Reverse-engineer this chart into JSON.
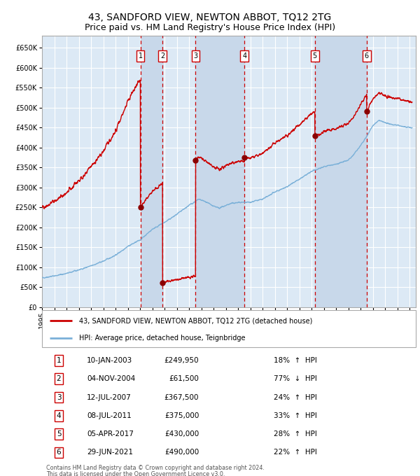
{
  "title": "43, SANDFORD VIEW, NEWTON ABBOT, TQ12 2TG",
  "subtitle": "Price paid vs. HM Land Registry's House Price Index (HPI)",
  "legend_line1": "43, SANDFORD VIEW, NEWTON ABBOT, TQ12 2TG (detached house)",
  "legend_line2": "HPI: Average price, detached house, Teignbridge",
  "footer1": "Contains HM Land Registry data © Crown copyright and database right 2024.",
  "footer2": "This data is licensed under the Open Government Licence v3.0.",
  "transactions": [
    {
      "num": 1,
      "date": "10-JAN-2003",
      "year": 2003.03,
      "price": 249950,
      "pct": "18%",
      "dir": "↑"
    },
    {
      "num": 2,
      "date": "04-NOV-2004",
      "year": 2004.84,
      "price": 61500,
      "pct": "77%",
      "dir": "↓"
    },
    {
      "num": 3,
      "date": "12-JUL-2007",
      "year": 2007.53,
      "price": 367500,
      "pct": "24%",
      "dir": "↑"
    },
    {
      "num": 4,
      "date": "08-JUL-2011",
      "year": 2011.52,
      "price": 375000,
      "pct": "33%",
      "dir": "↑"
    },
    {
      "num": 5,
      "date": "05-APR-2017",
      "year": 2017.26,
      "price": 430000,
      "pct": "28%",
      "dir": "↑"
    },
    {
      "num": 6,
      "date": "29-JUN-2021",
      "year": 2021.49,
      "price": 490000,
      "pct": "22%",
      "dir": "↑"
    }
  ],
  "ylim": [
    0,
    680000
  ],
  "yticks": [
    0,
    50000,
    100000,
    150000,
    200000,
    250000,
    300000,
    350000,
    400000,
    450000,
    500000,
    550000,
    600000,
    650000
  ],
  "xlim_start": 1995.0,
  "xlim_end": 2025.5,
  "bg_color": "#dce9f5",
  "grid_color": "#ffffff",
  "hpi_color": "#7ab0d8",
  "price_color": "#cc0000",
  "dot_color": "#8b0000",
  "vline_color": "#cc0000",
  "shade_color": "#c8d8ea",
  "title_fontsize": 10,
  "subtitle_fontsize": 9
}
